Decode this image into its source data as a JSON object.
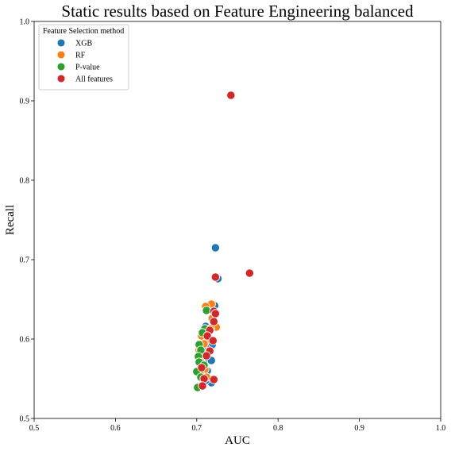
{
  "chart_data": {
    "type": "scatter",
    "title": "Static results based on Feature Engineering balanced",
    "xlabel": "AUC",
    "ylabel": "Recall",
    "xlim": [
      0.5,
      1.0
    ],
    "ylim": [
      0.5,
      1.0
    ],
    "xticks": [
      "0.5",
      "0.6",
      "0.7",
      "0.8",
      "0.9",
      "1.0"
    ],
    "yticks": [
      "0.5",
      "0.6",
      "0.7",
      "0.8",
      "0.9",
      "1.0"
    ],
    "grid": false,
    "legend": {
      "title": "Feature Selection method",
      "position": "top-left"
    },
    "series": [
      {
        "name": "XGB",
        "color": "#1f77b4",
        "points": [
          [
            0.723,
            0.715
          ],
          [
            0.726,
            0.676
          ],
          [
            0.722,
            0.642
          ],
          [
            0.711,
            0.616
          ],
          [
            0.713,
            0.612
          ],
          [
            0.709,
            0.608
          ],
          [
            0.716,
            0.597
          ],
          [
            0.719,
            0.593
          ],
          [
            0.712,
            0.588
          ],
          [
            0.708,
            0.585
          ],
          [
            0.715,
            0.575
          ],
          [
            0.71,
            0.571
          ],
          [
            0.718,
            0.573
          ],
          [
            0.706,
            0.566
          ],
          [
            0.713,
            0.56
          ],
          [
            0.708,
            0.552
          ],
          [
            0.718,
            0.545
          ],
          [
            0.711,
            0.548
          ]
        ]
      },
      {
        "name": "RF",
        "color": "#ff7f0e",
        "points": [
          [
            0.718,
            0.644
          ],
          [
            0.711,
            0.641
          ],
          [
            0.719,
            0.626
          ],
          [
            0.724,
            0.615
          ],
          [
            0.717,
            0.613
          ],
          [
            0.706,
            0.604
          ],
          [
            0.714,
            0.6
          ],
          [
            0.709,
            0.594
          ],
          [
            0.703,
            0.586
          ],
          [
            0.711,
            0.581
          ],
          [
            0.705,
            0.574
          ],
          [
            0.707,
            0.569
          ],
          [
            0.71,
            0.562
          ],
          [
            0.704,
            0.557
          ],
          [
            0.712,
            0.552
          ]
        ]
      },
      {
        "name": "P-value",
        "color": "#2ca02c",
        "points": [
          [
            0.712,
            0.636
          ],
          [
            0.71,
            0.613
          ],
          [
            0.707,
            0.608
          ],
          [
            0.703,
            0.593
          ],
          [
            0.705,
            0.586
          ],
          [
            0.702,
            0.578
          ],
          [
            0.703,
            0.571
          ],
          [
            0.709,
            0.567
          ],
          [
            0.7,
            0.559
          ],
          [
            0.705,
            0.552
          ],
          [
            0.701,
            0.539
          ]
        ]
      },
      {
        "name": "All features",
        "color": "#d62728",
        "points": [
          [
            0.742,
            0.907
          ],
          [
            0.765,
            0.683
          ],
          [
            0.723,
            0.678
          ],
          [
            0.721,
            0.635
          ],
          [
            0.723,
            0.632
          ],
          [
            0.721,
            0.622
          ],
          [
            0.716,
            0.611
          ],
          [
            0.713,
            0.604
          ],
          [
            0.72,
            0.598
          ],
          [
            0.716,
            0.585
          ],
          [
            0.712,
            0.579
          ],
          [
            0.706,
            0.564
          ],
          [
            0.709,
            0.55
          ],
          [
            0.721,
            0.549
          ],
          [
            0.707,
            0.541
          ]
        ]
      }
    ]
  }
}
